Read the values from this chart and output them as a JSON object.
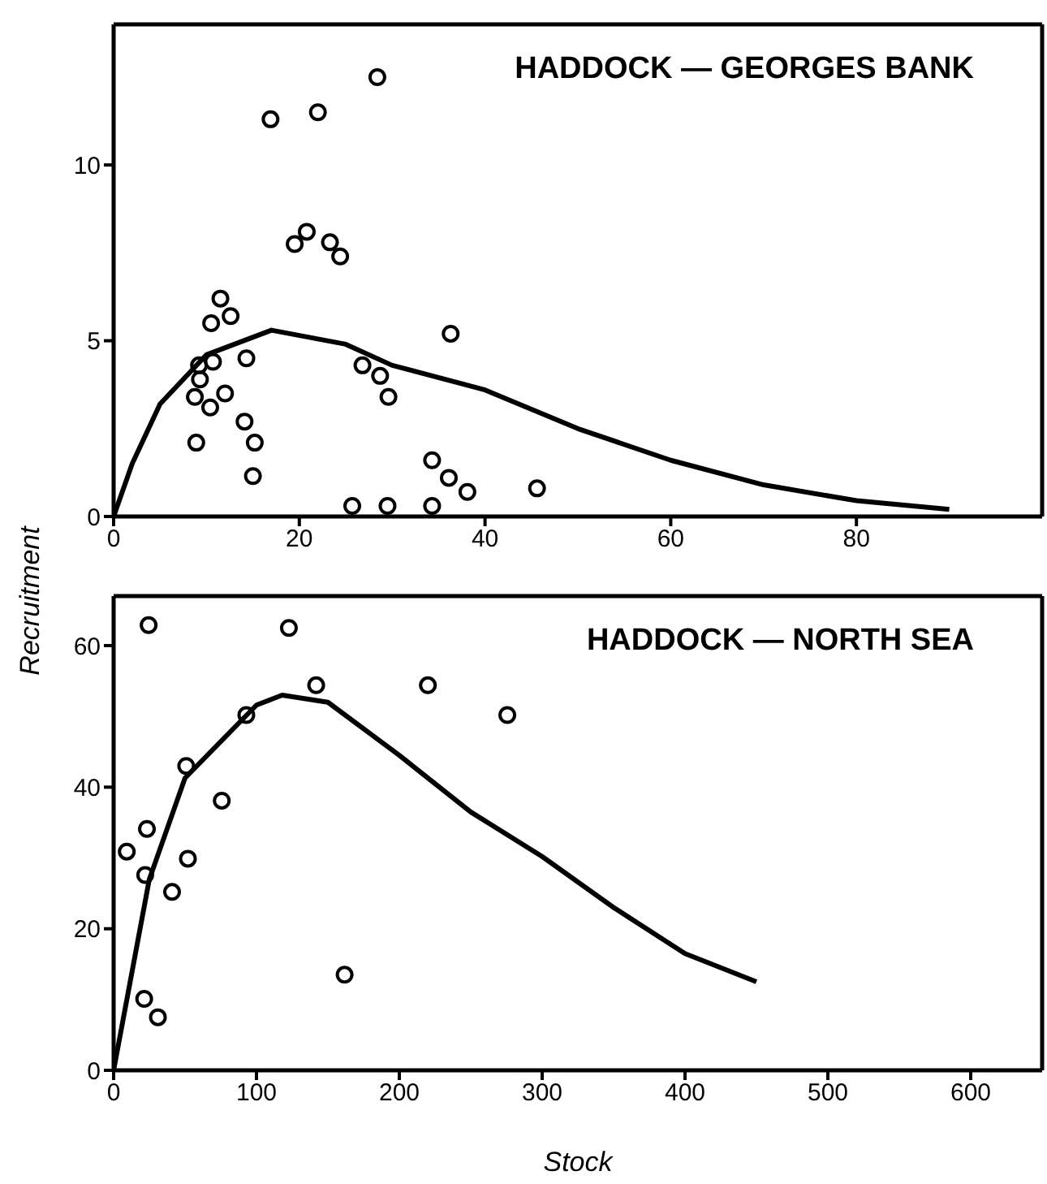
{
  "chart_data": [
    {
      "type": "scatter",
      "title": "HADDOCK — GEORGES BANK",
      "ylabel": "Recruitment",
      "xlim": [
        0,
        100
      ],
      "xticks": [
        0,
        20,
        40,
        60,
        80
      ],
      "ylim": [
        0,
        14
      ],
      "yticks": [
        0,
        5,
        10
      ],
      "grid": false,
      "legend": false,
      "marker": "circle",
      "series": [
        {
          "color": "#000000",
          "x": [
            28.4,
            16.9,
            22.0,
            19.5,
            20.8,
            23.3,
            24.4,
            11.5,
            12.6,
            10.5,
            36.3,
            14.3,
            10.7,
            9.2,
            9.3,
            8.75,
            10.4,
            12.0,
            26.8,
            28.7,
            29.6,
            14.1,
            15.2,
            8.9,
            15.0,
            34.3,
            36.1,
            38.1,
            45.6,
            25.7,
            29.5,
            34.3
          ],
          "values": [
            12.5,
            11.3,
            11.5,
            7.75,
            8.1,
            7.8,
            7.4,
            6.2,
            5.7,
            5.5,
            5.2,
            4.5,
            4.4,
            4.3,
            3.9,
            3.4,
            3.1,
            3.5,
            4.3,
            4.0,
            3.4,
            2.7,
            2.1,
            2.1,
            1.15,
            1.6,
            1.1,
            0.7,
            0.8,
            0.3,
            0.3,
            0.3
          ]
        },
        {
          "type": "line",
          "color": "#000000",
          "marker": "none",
          "line_style": "solid",
          "x": [
            0,
            2,
            5,
            10,
            17,
            25,
            30,
            40,
            50,
            60,
            70,
            80,
            90
          ],
          "values": [
            0,
            1.5,
            3.2,
            4.6,
            5.3,
            4.9,
            4.3,
            3.6,
            2.5,
            1.6,
            0.9,
            0.45,
            0.2
          ]
        }
      ]
    },
    {
      "type": "scatter",
      "title": "HADDOCK — NORTH SEA",
      "xlabel": "Stock",
      "xlim": [
        0,
        650
      ],
      "xticks": [
        0,
        100,
        200,
        300,
        400,
        500,
        600
      ],
      "ylim": [
        0,
        67
      ],
      "yticks": [
        0,
        20,
        40,
        60
      ],
      "grid": false,
      "legend": false,
      "marker": "circle",
      "series": [
        {
          "color": "#000000",
          "x": [
            24.5,
            122.7,
            141.8,
            220,
            275.6,
            92.9,
            50.8,
            75.7,
            23.3,
            9.2,
            52,
            22.1,
            40.9,
            161.7,
            21.4,
            31
          ],
          "values": [
            62.9,
            62.5,
            54.4,
            54.4,
            50.2,
            50.2,
            43.0,
            38.1,
            34.1,
            30.9,
            29.9,
            27.6,
            25.2,
            13.5,
            10.1,
            7.5
          ]
        },
        {
          "type": "line",
          "color": "#000000",
          "marker": "none",
          "line_style": "solid",
          "x": [
            0,
            25,
            50,
            100,
            118,
            150,
            200,
            250,
            300,
            350,
            400,
            450
          ],
          "values": [
            0,
            27,
            41.3,
            51.6,
            53,
            52,
            44.5,
            36.5,
            30.2,
            23,
            16.5,
            12.5
          ]
        }
      ]
    }
  ]
}
